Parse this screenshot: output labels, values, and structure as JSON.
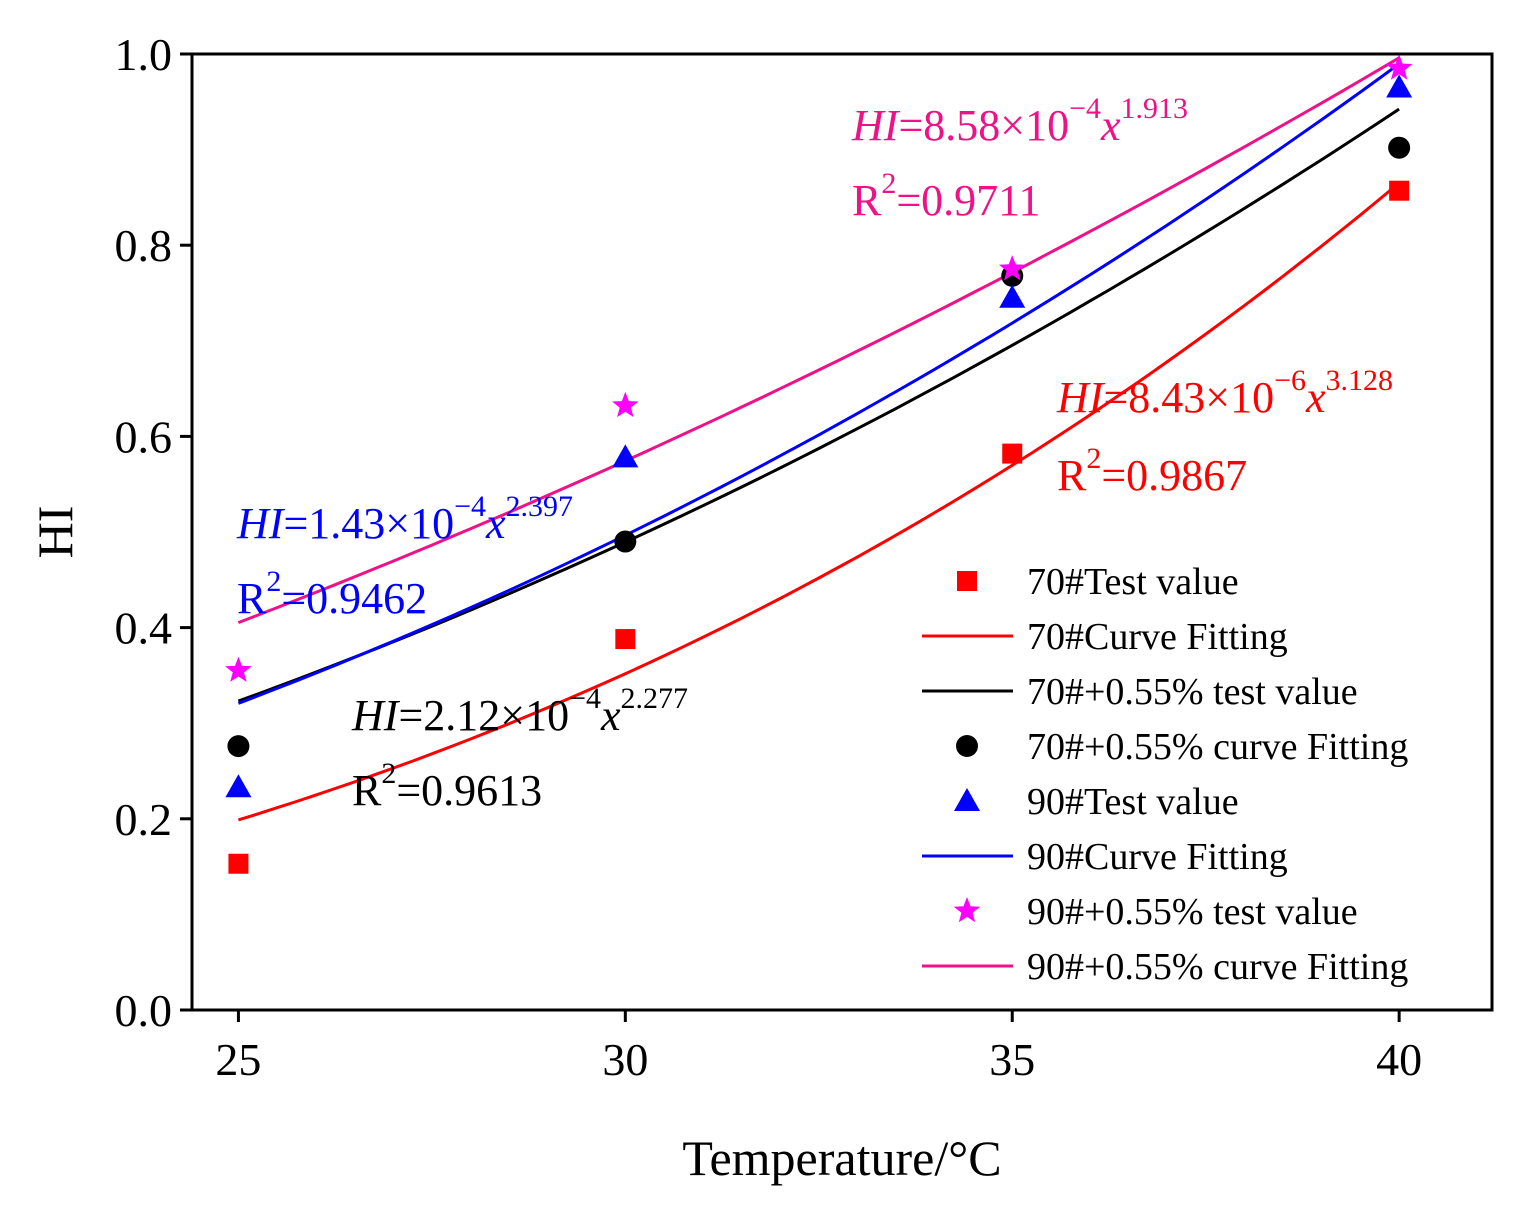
{
  "chart_data": {
    "type": "scatter",
    "xlabel": "Temperature/°C",
    "ylabel": "HI",
    "xlim": [
      24.4,
      41.2
    ],
    "ylim": [
      0.0,
      1.0
    ],
    "xticks": [
      "25",
      "30",
      "35",
      "40"
    ],
    "xtick_values": [
      25,
      30,
      35,
      40
    ],
    "yticks": [
      "0.0",
      "0.2",
      "0.4",
      "0.6",
      "0.8",
      "1.0"
    ],
    "ytick_values": [
      0.0,
      0.2,
      0.4,
      0.6,
      0.8,
      1.0
    ],
    "legend_position": "lower-right",
    "series": [
      {
        "name": "70#Test value",
        "kind": "points",
        "marker": "square",
        "color": "#ff0000",
        "x": [
          25,
          30,
          35,
          40
        ],
        "y": [
          0.153,
          0.388,
          0.582,
          0.857
        ]
      },
      {
        "name": "70#Curve Fitting",
        "kind": "curve",
        "color": "#ff0000",
        "coef": 8.43e-06,
        "exp": 3.128,
        "xrange": [
          25,
          40
        ]
      },
      {
        "name": "70#+0.55% test value",
        "kind": "curve",
        "color": "#000000",
        "coef": 0.000212,
        "exp": 2.277,
        "xrange": [
          25,
          40
        ]
      },
      {
        "name": "70#+0.55% curve Fitting",
        "kind": "points",
        "marker": "circle",
        "color": "#000000",
        "x": [
          25,
          30,
          35,
          40
        ],
        "y": [
          0.276,
          0.49,
          0.768,
          0.902
        ]
      },
      {
        "name": "90#Test value",
        "kind": "points",
        "marker": "triangle",
        "color": "#0000ff",
        "x": [
          25,
          30,
          35,
          40
        ],
        "y": [
          0.233,
          0.578,
          0.745,
          0.965
        ]
      },
      {
        "name": "90#Curve Fitting",
        "kind": "curve",
        "color": "#0000ff",
        "coef": 0.000143,
        "exp": 2.397,
        "xrange": [
          25,
          40
        ]
      },
      {
        "name": "90#+0.55% test value",
        "kind": "points",
        "marker": "star",
        "color": "#ff00ff",
        "x": [
          25,
          30,
          35,
          40
        ],
        "y": [
          0.355,
          0.632,
          0.775,
          0.985
        ]
      },
      {
        "name": "90#+0.55% curve Fitting",
        "kind": "curve",
        "color": "#ee1188",
        "coef": 0.000858,
        "exp": 1.913,
        "xrange": [
          25,
          40
        ]
      }
    ],
    "annotations": [
      {
        "id": "pink",
        "color": "#ee1188",
        "var": "HI",
        "eq": "=8.58×10",
        "exp10": "−4",
        "x": "x",
        "pow": "1.913",
        "r2_label": "R",
        "r2_sup": "2",
        "r2_val": "=0.9711"
      },
      {
        "id": "red",
        "color": "#ff0000",
        "var": "HI",
        "eq": "=8.43×10",
        "exp10": "−6",
        "x": "x",
        "pow": "3.128",
        "r2_label": "R",
        "r2_sup": "2",
        "r2_val": "=0.9867"
      },
      {
        "id": "blue",
        "color": "#0000ff",
        "var": "HI",
        "eq": "=1.43×10",
        "exp10": "−4",
        "x": "x",
        "pow": "2.397",
        "r2_label": "R",
        "r2_sup": "2",
        "r2_val": "=0.9462"
      },
      {
        "id": "black",
        "color": "#000000",
        "var": "HI",
        "eq": "=2.12×10",
        "exp10": "−4",
        "x": "x",
        "pow": "2.277",
        "r2_label": "R",
        "r2_sup": "2",
        "r2_val": "=0.9613"
      }
    ]
  }
}
